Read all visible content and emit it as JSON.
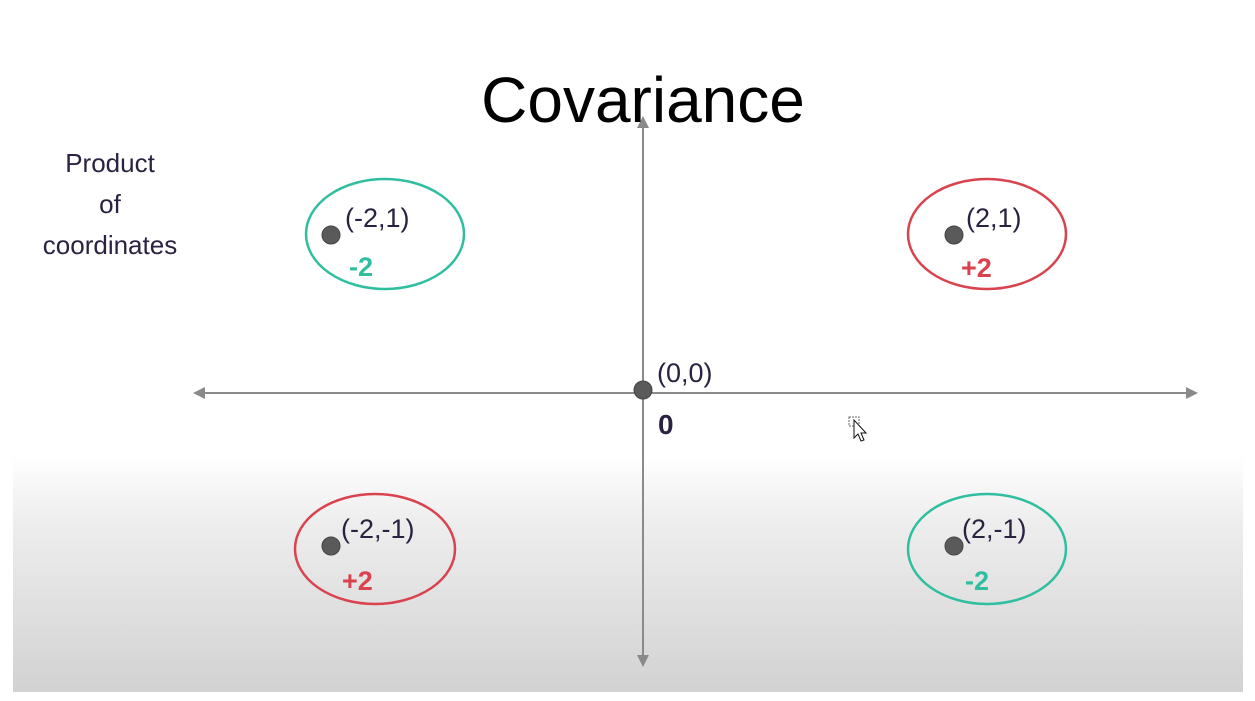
{
  "title": "Covariance",
  "side_label": {
    "line1": "Product",
    "line2": "of",
    "line3": "coordinates"
  },
  "origin": {
    "coord": "(0,0)",
    "product": "0"
  },
  "points": [
    {
      "coord": "(-2,1)",
      "product": "-2",
      "sign": "negative"
    },
    {
      "coord": "(2,1)",
      "product": "+2",
      "sign": "positive"
    },
    {
      "coord": "(-2,-1)",
      "product": "+2",
      "sign": "positive"
    },
    {
      "coord": "(2,-1)",
      "product": "-2",
      "sign": "negative"
    }
  ],
  "colors": {
    "positive": "#d9434e",
    "negative": "#2fbfa0",
    "axis": "#8a8a8a",
    "point": "#5a5a5a"
  }
}
